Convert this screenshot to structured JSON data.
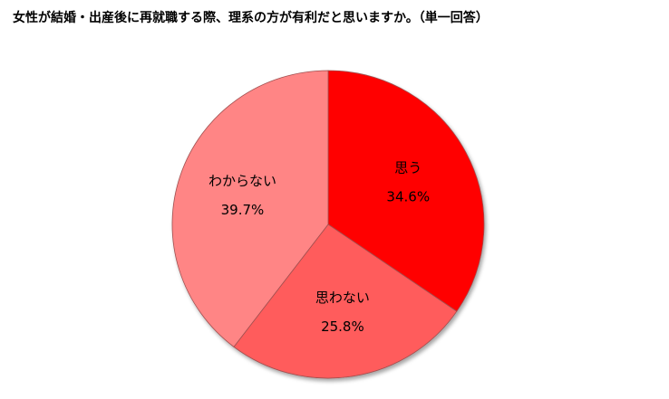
{
  "chart_data": {
    "type": "pie",
    "title": "女性が結婚・出産後に再就職する際、理系の方が有利だと思いますか。（単一回答）",
    "categories": [
      "思う",
      "思わない",
      "わからない"
    ],
    "values": [
      34.6,
      25.8,
      39.7
    ],
    "value_labels": [
      "34.6%",
      "25.8%",
      "39.7%"
    ],
    "colors": [
      "#ff0000",
      "#ff5b5b",
      "#ff8585"
    ]
  }
}
